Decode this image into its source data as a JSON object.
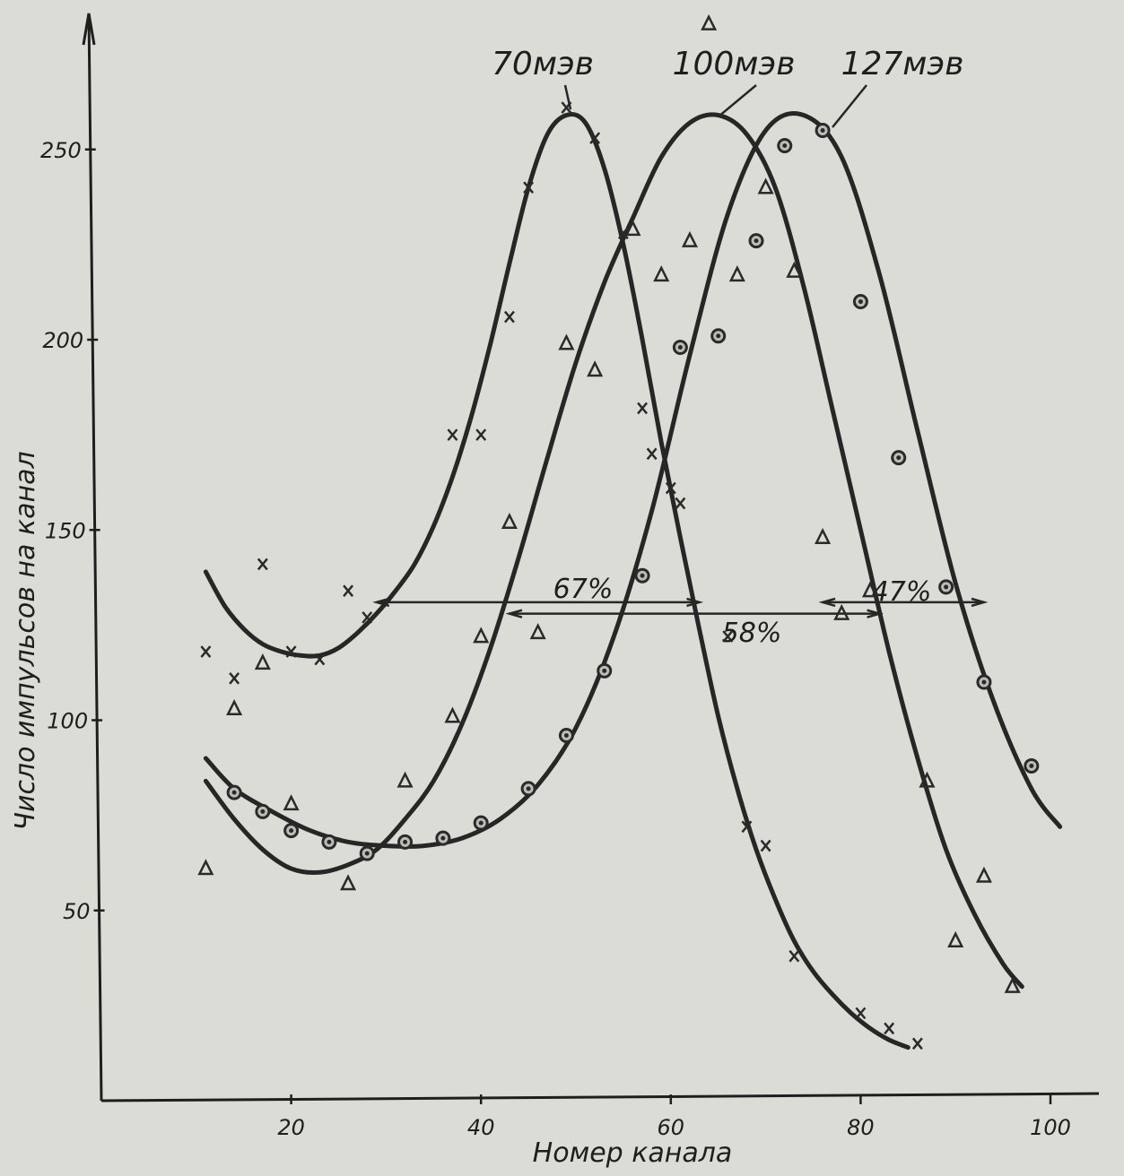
{
  "chart_data": {
    "type": "line",
    "xlabel": "Номер канала",
    "ylabel": "Число импульсов на канал",
    "xlim": [
      0,
      105
    ],
    "ylim": [
      0,
      280
    ],
    "xticks": [
      20,
      40,
      60,
      80,
      100
    ],
    "yticks": [
      50,
      100,
      150,
      200,
      250
    ],
    "grid": false,
    "series": [
      {
        "name": "70мэв",
        "marker": "x",
        "curve_x": [
          11,
          13,
          15,
          17,
          19,
          21,
          23,
          25,
          27,
          29,
          31,
          33,
          35,
          37,
          39,
          41,
          43,
          45,
          47,
          49,
          51,
          53,
          55,
          57,
          59,
          61,
          63,
          65,
          67,
          69,
          71,
          73,
          75,
          77,
          79,
          81,
          83,
          85
        ],
        "curve_y": [
          139,
          130,
          124,
          120,
          118,
          117,
          117,
          119,
          123,
          128,
          134,
          141,
          151,
          164,
          180,
          199,
          220,
          240,
          254,
          259,
          257,
          245,
          225,
          200,
          173,
          148,
          124,
          101,
          82,
          66,
          53,
          42,
          34,
          28,
          23,
          19,
          16,
          14
        ],
        "points_x": [
          11,
          14,
          17,
          20,
          23,
          26,
          28,
          37,
          40,
          43,
          45,
          49,
          52,
          55,
          57,
          58,
          60,
          61,
          66,
          68,
          70,
          73,
          80,
          83,
          86
        ],
        "points_y": [
          118,
          111,
          141,
          118,
          116,
          134,
          127,
          175,
          175,
          206,
          240,
          261,
          253,
          228,
          182,
          170,
          161,
          157,
          122,
          72,
          67,
          38,
          23,
          19,
          15
        ]
      },
      {
        "name": "100мэв",
        "marker": "triangle",
        "curve_x": [
          11,
          14,
          17,
          20,
          23,
          26,
          29,
          32,
          35,
          38,
          41,
          44,
          47,
          50,
          53,
          56,
          59,
          62,
          65,
          68,
          71,
          74,
          77,
          80,
          83,
          86,
          89,
          92,
          95,
          97
        ],
        "curve_y": [
          84,
          74,
          66,
          61,
          60,
          62,
          66,
          74,
          84,
          99,
          119,
          143,
          169,
          194,
          215,
          232,
          248,
          257,
          259,
          254,
          240,
          214,
          182,
          150,
          118,
          90,
          66,
          49,
          36,
          30
        ],
        "points_x": [
          11,
          14,
          17,
          20,
          26,
          32,
          37,
          40,
          43,
          46,
          49,
          52,
          56,
          59,
          62,
          64,
          67,
          70,
          73,
          76,
          78,
          81,
          87,
          90,
          93,
          96
        ],
        "points_y": [
          61,
          103,
          115,
          78,
          57,
          84,
          101,
          122,
          152,
          123,
          199,
          192,
          229,
          217,
          226,
          283,
          217,
          240,
          218,
          148,
          128,
          134,
          84,
          42,
          59,
          30
        ]
      },
      {
        "name": "127мэв",
        "marker": "circle",
        "curve_x": [
          11,
          14,
          18,
          22,
          26,
          30,
          34,
          38,
          42,
          46,
          50,
          54,
          58,
          62,
          66,
          70,
          74,
          78,
          82,
          86,
          90,
          94,
          98,
          101
        ],
        "curve_y": [
          90,
          82,
          76,
          71,
          68,
          67,
          67,
          69,
          74,
          83,
          98,
          122,
          155,
          196,
          233,
          255,
          259,
          248,
          217,
          176,
          136,
          105,
          82,
          72
        ],
        "points_x": [
          14,
          17,
          20,
          24,
          28,
          32,
          36,
          40,
          45,
          49,
          53,
          57,
          61,
          65,
          69,
          72,
          76,
          80,
          84,
          89,
          93,
          98
        ],
        "points_y": [
          81,
          76,
          71,
          68,
          65,
          68,
          69,
          73,
          82,
          96,
          113,
          138,
          198,
          201,
          226,
          251,
          255,
          210,
          169,
          135,
          110,
          88
        ]
      }
    ],
    "annotations": [
      {
        "text": "67%",
        "y": 131,
        "x_from": 29,
        "x_to": 63
      },
      {
        "text": "47%",
        "y": 131,
        "x_from": 76,
        "x_to": 93
      },
      {
        "text": "58%",
        "y": 128,
        "x_from": 43,
        "x_to": 82
      }
    ]
  }
}
